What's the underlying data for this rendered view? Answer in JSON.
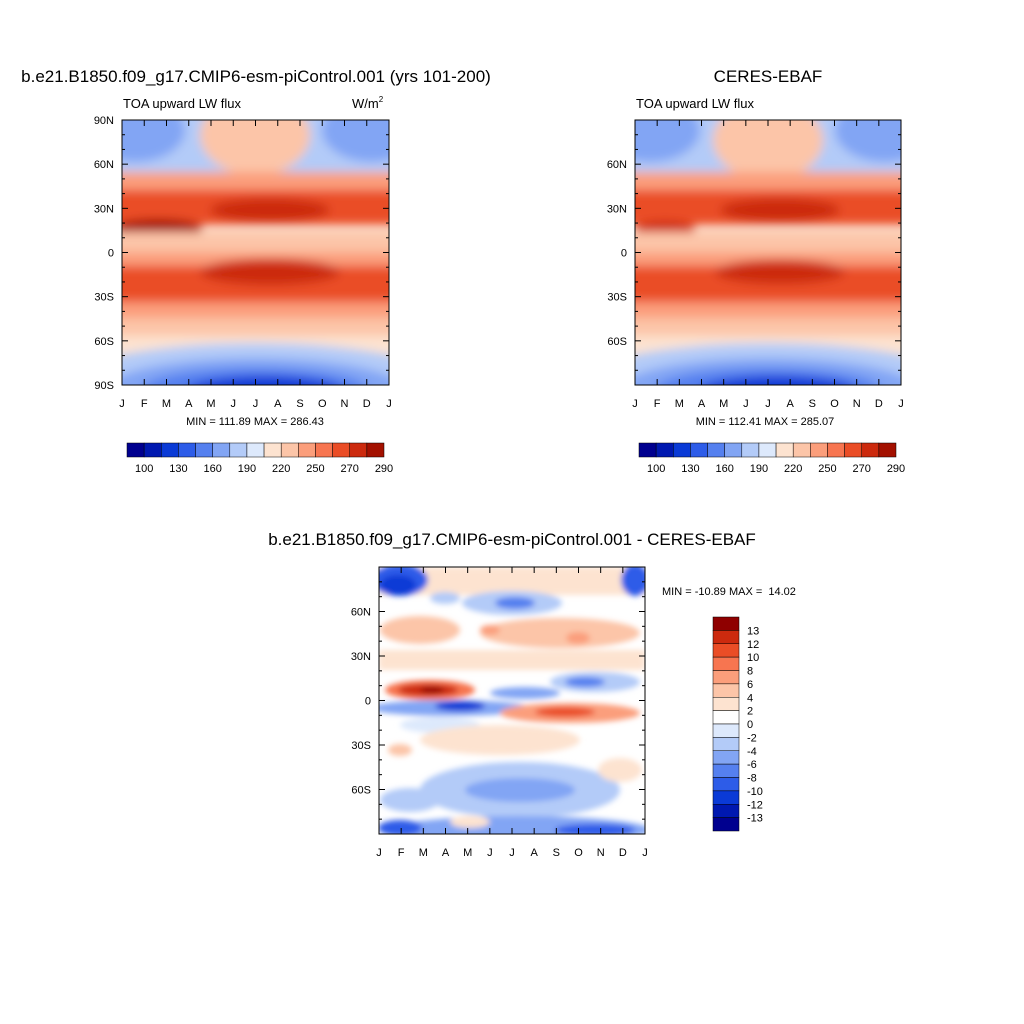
{
  "chart_data": [
    {
      "type": "heatmap",
      "title": "b.e21.B1850.f09_g17.CMIP6-esm-piControl.001 (yrs 101-200)",
      "subtitle": "TOA upward LW flux",
      "units": "W/m",
      "units_sup": "2",
      "x_ticks": [
        "J",
        "F",
        "M",
        "A",
        "M",
        "J",
        "J",
        "A",
        "S",
        "O",
        "N",
        "D",
        "J"
      ],
      "y_ticks": [
        "90N",
        "60N",
        "30N",
        "0",
        "30S",
        "60S",
        "90S"
      ],
      "y_range": [
        -90,
        90
      ],
      "stats": "MIN = 111.89 MAX = 286.43",
      "min": 111.89,
      "max": 286.43,
      "colorbar": {
        "labels": [
          "100",
          "130",
          "160",
          "190",
          "220",
          "250",
          "270",
          "290"
        ],
        "levels": [
          100,
          115,
          130,
          145,
          160,
          175,
          190,
          205,
          220,
          235,
          250,
          260,
          270,
          280,
          290
        ]
      }
    },
    {
      "type": "heatmap",
      "title": "CERES-EBAF",
      "subtitle": "TOA upward LW flux",
      "x_ticks": [
        "J",
        "F",
        "M",
        "A",
        "M",
        "J",
        "J",
        "A",
        "S",
        "O",
        "N",
        "D",
        "J"
      ],
      "y_ticks": [
        "60N",
        "30N",
        "0",
        "30S",
        "60S"
      ],
      "y_range": [
        -90,
        90
      ],
      "stats": "MIN = 112.41 MAX = 285.07",
      "min": 112.41,
      "max": 285.07,
      "colorbar": {
        "labels": [
          "100",
          "130",
          "160",
          "190",
          "220",
          "250",
          "270",
          "290"
        ],
        "levels": [
          100,
          115,
          130,
          145,
          160,
          175,
          190,
          205,
          220,
          235,
          250,
          260,
          270,
          280,
          290
        ]
      }
    },
    {
      "type": "heatmap",
      "title": "b.e21.B1850.f09_g17.CMIP6-esm-piControl.001 - CERES-EBAF",
      "x_ticks": [
        "J",
        "F",
        "M",
        "A",
        "M",
        "J",
        "J",
        "A",
        "S",
        "O",
        "N",
        "D",
        "J"
      ],
      "y_ticks": [
        "60N",
        "30N",
        "0",
        "30S",
        "60S"
      ],
      "y_range": [
        -90,
        90
      ],
      "stats": "MIN = -10.89 MAX =  14.02",
      "min": -10.89,
      "max": 14.02,
      "colorbar": {
        "labels": [
          "13",
          "12",
          "10",
          "8",
          "6",
          "4",
          "2",
          "0",
          "-2",
          "-4",
          "-6",
          "-8",
          "-10",
          "-12",
          "-13"
        ],
        "levels": [
          13,
          12,
          10,
          8,
          6,
          4,
          2,
          0,
          -2,
          -4,
          -6,
          -8,
          -10,
          -12,
          -13
        ]
      }
    }
  ],
  "colors": {
    "ramp15": [
      "#00008f",
      "#0018b0",
      "#0a3ad6",
      "#2d5ce8",
      "#5580ef",
      "#82a5f4",
      "#b3cbf8",
      "#dde9fc",
      "#fde3d0",
      "#fcc5a8",
      "#fb9e7b",
      "#f77550",
      "#ea4d26",
      "#cc2a0e",
      "#a31000"
    ],
    "div16": [
      "#00008f",
      "#0018b0",
      "#0a3ad6",
      "#2d5ce8",
      "#5580ef",
      "#82a5f4",
      "#b3cbf8",
      "#dde9fc",
      "#ffffff",
      "#fde3d0",
      "#fcc5a8",
      "#fb9e7b",
      "#f77550",
      "#ea4d26",
      "#cc2a0e",
      "#8f0000"
    ]
  }
}
